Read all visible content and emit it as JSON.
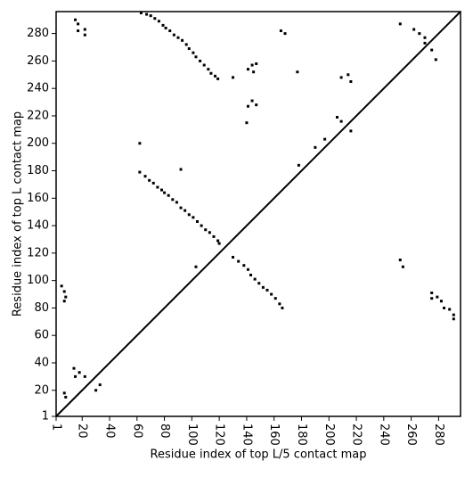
{
  "chart_data": {
    "type": "scatter",
    "xlabel": "Residue index of top L/5 contact map",
    "ylabel": "Residue index of top L contact map",
    "xlim": [
      1,
      296
    ],
    "ylim": [
      1,
      296
    ],
    "xticks": [
      1,
      20,
      40,
      60,
      80,
      100,
      120,
      140,
      160,
      180,
      200,
      220,
      240,
      260,
      280
    ],
    "yticks": [
      1,
      20,
      40,
      60,
      80,
      100,
      120,
      140,
      160,
      180,
      200,
      220,
      240,
      260,
      280
    ],
    "series": [
      {
        "color": "#000000",
        "x": [
          15,
          17,
          17,
          22,
          22,
          63,
          67,
          70,
          73,
          76,
          79,
          81,
          84,
          87,
          90,
          93,
          96,
          98,
          101,
          103,
          106,
          109,
          112,
          114,
          117,
          119,
          62,
          66,
          69,
          72,
          75,
          78,
          80,
          83,
          86,
          89,
          92,
          95,
          98,
          101,
          104,
          107,
          110,
          113,
          116,
          119,
          120,
          62,
          92,
          103,
          130,
          141,
          144,
          147,
          145,
          141,
          144,
          147,
          140,
          165,
          168,
          177,
          178,
          190,
          197,
          206,
          209,
          209,
          214,
          216,
          216,
          252,
          262,
          266,
          270,
          270,
          275,
          278,
          5,
          7,
          8,
          7,
          14,
          15,
          18,
          22,
          30,
          33,
          7,
          8,
          130,
          134,
          138,
          141,
          143,
          146,
          149,
          152,
          155,
          158,
          161,
          164,
          166,
          252,
          254,
          275,
          275,
          279,
          282,
          284,
          288,
          291,
          291
        ],
        "y": [
          290,
          282,
          287,
          283,
          279,
          295,
          294,
          293,
          291,
          289,
          286,
          284,
          282,
          279,
          277,
          275,
          272,
          269,
          266,
          263,
          260,
          257,
          254,
          251,
          249,
          247,
          179,
          176,
          173,
          171,
          168,
          166,
          164,
          162,
          159,
          157,
          153,
          151,
          148,
          146,
          143,
          140,
          137,
          135,
          132,
          129,
          127,
          200,
          181,
          110,
          248,
          254,
          257,
          258,
          252,
          227,
          231,
          228,
          215,
          282,
          280,
          252,
          184,
          197,
          203,
          219,
          216,
          248,
          250,
          245,
          209,
          287,
          283,
          280,
          277,
          273,
          268,
          261,
          96,
          92,
          88,
          85,
          36,
          30,
          33,
          30,
          20,
          24,
          18,
          15,
          117,
          114,
          111,
          108,
          104,
          101,
          98,
          95,
          93,
          90,
          87,
          83,
          80,
          115,
          110,
          91,
          87,
          88,
          85,
          80,
          79,
          75,
          72
        ]
      }
    ]
  }
}
